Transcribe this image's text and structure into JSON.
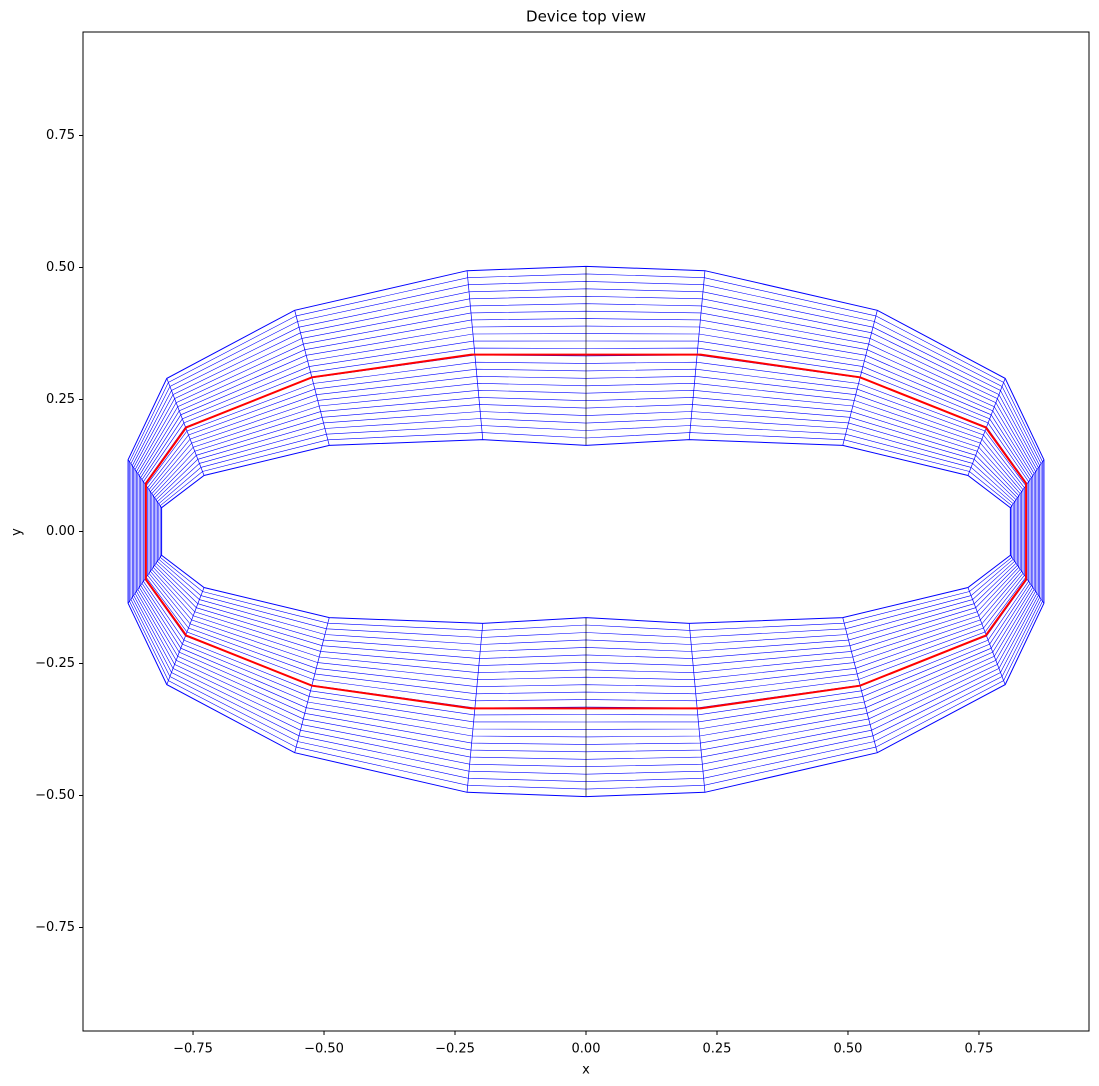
{
  "chart_data": {
    "type": "mesh",
    "title": "Device top view",
    "x_label": "x",
    "y_label": "y",
    "xlim": [
      -0.96,
      0.96
    ],
    "ylim": [
      -0.946,
      0.946
    ],
    "xticks": [
      {
        "value": -0.75,
        "label": "−0.75"
      },
      {
        "value": -0.5,
        "label": "−0.50"
      },
      {
        "value": -0.25,
        "label": "−0.25"
      },
      {
        "value": 0,
        "label": "0.00"
      },
      {
        "value": 0.25,
        "label": "0.25"
      },
      {
        "value": 0.5,
        "label": "0.50"
      },
      {
        "value": 0.75,
        "label": "0.75"
      }
    ],
    "yticks": [
      {
        "value": -0.75,
        "label": "−0.75"
      },
      {
        "value": -0.5,
        "label": "−0.50"
      },
      {
        "value": -0.25,
        "label": "−0.25"
      },
      {
        "value": 0,
        "label": "0.00"
      },
      {
        "value": 0.25,
        "label": "0.25"
      },
      {
        "value": 0.5,
        "label": "0.50"
      },
      {
        "value": 0.75,
        "label": "0.75"
      }
    ],
    "series": [
      {
        "color": "#0000ff",
        "x": [
          -0.874,
          -0.8,
          -0.556,
          -0.227,
          0,
          0.227,
          0.556,
          0.8,
          0.874,
          0.874,
          0.8,
          0.556,
          0.227,
          0,
          -0.227,
          -0.556,
          -0.8,
          -0.874
        ],
        "y": [
          0.136,
          0.29,
          0.419,
          0.494,
          0.502,
          0.494,
          0.419,
          0.29,
          0.136,
          -0.136,
          -0.29,
          -0.419,
          -0.494,
          -0.502,
          -0.494,
          -0.419,
          -0.29,
          -0.136
        ]
      },
      {
        "color": "#0000ff",
        "x": [
          -0.81,
          -0.729,
          -0.49,
          -0.197,
          0,
          0.197,
          0.49,
          0.729,
          0.81,
          0.81,
          0.729,
          0.49,
          0.197,
          0,
          -0.197,
          -0.49,
          -0.729,
          -0.81
        ],
        "y": [
          0.045,
          0.106,
          0.163,
          0.174,
          0.163,
          0.174,
          0.163,
          0.106,
          0.045,
          -0.045,
          -0.106,
          -0.163,
          -0.174,
          -0.163,
          -0.174,
          -0.163,
          -0.106,
          -0.045
        ]
      },
      {
        "color": "#ff0000",
        "x": [
          -0.84,
          -0.763,
          -0.523,
          -0.219,
          0,
          0.219,
          0.523,
          0.763,
          0.84,
          0.84,
          0.763,
          0.523,
          0.219,
          0,
          -0.219,
          -0.523,
          -0.763,
          -0.84
        ],
        "y": [
          0.091,
          0.197,
          0.292,
          0.335,
          0.335,
          0.335,
          0.292,
          0.197,
          0.091,
          -0.091,
          -0.197,
          -0.292,
          -0.335,
          -0.335,
          -0.335,
          -0.292,
          -0.197,
          -0.091
        ]
      }
    ]
  }
}
